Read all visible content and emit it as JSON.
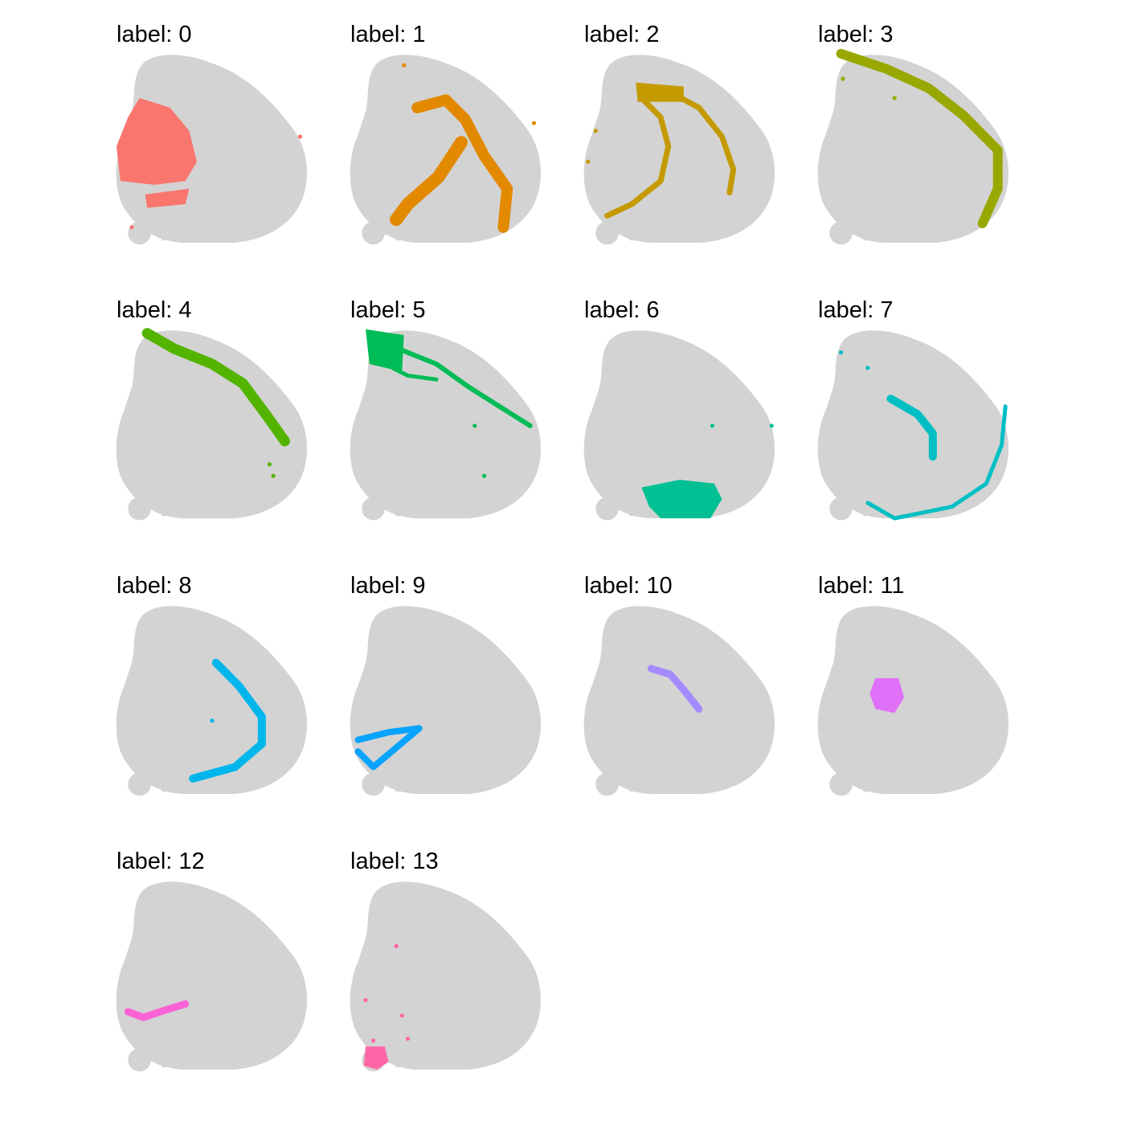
{
  "chart_data": {
    "type": "scatter",
    "title": "",
    "facet_label_prefix": "label: ",
    "background_color": "#d3d3d3",
    "axes_visible": false,
    "grid": false,
    "legend": "none",
    "panels": [
      {
        "label": "0",
        "title": "label: 0",
        "color": "#f8766d",
        "highlight_region": "left-center lobe",
        "outliers": [
          [
            0.96,
            0.45
          ],
          [
            0.08,
            0.92
          ]
        ]
      },
      {
        "label": "1",
        "title": "label: 1",
        "color": "#e38900",
        "highlight_region": "central and lower-right arcs",
        "outliers": [
          [
            0.28,
            0.08
          ],
          [
            0.96,
            0.38
          ]
        ]
      },
      {
        "label": "2",
        "title": "label: 2",
        "color": "#c49a00",
        "highlight_region": "two curved bands",
        "outliers": [
          [
            0.06,
            0.42
          ],
          [
            0.02,
            0.58
          ]
        ]
      },
      {
        "label": "3",
        "title": "label: 3",
        "color": "#99a800",
        "highlight_region": "outer upper-right rim",
        "outliers": [
          [
            0.13,
            0.15
          ],
          [
            0.4,
            0.25
          ]
        ]
      },
      {
        "label": "4",
        "title": "label: 4",
        "color": "#53b400",
        "highlight_region": "upper diagonal band",
        "outliers": [
          [
            0.8,
            0.72
          ],
          [
            0.82,
            0.78
          ]
        ]
      },
      {
        "label": "5",
        "title": "label: 5",
        "color": "#00bc56",
        "highlight_region": "upper-left cluster and band",
        "outliers": [
          [
            0.65,
            0.52
          ],
          [
            0.7,
            0.78
          ]
        ]
      },
      {
        "label": "6",
        "title": "label: 6",
        "color": "#00c094",
        "highlight_region": "bottom center",
        "outliers": [
          [
            0.67,
            0.52
          ],
          [
            0.98,
            0.52
          ]
        ]
      },
      {
        "label": "7",
        "title": "label: 7",
        "color": "#00bfc4",
        "highlight_region": "center and right rim",
        "outliers": [
          [
            0.12,
            0.14
          ],
          [
            0.26,
            0.22
          ]
        ]
      },
      {
        "label": "8",
        "title": "label: 8",
        "color": "#00b6eb",
        "highlight_region": "curved central arc",
        "outliers": [
          [
            0.5,
            0.62
          ]
        ]
      },
      {
        "label": "9",
        "title": "label: 9",
        "color": "#06a4ff",
        "highlight_region": "lower-left loop",
        "outliers": []
      },
      {
        "label": "10",
        "title": "label: 10",
        "color": "#a58aff",
        "highlight_region": "small central arc",
        "outliers": []
      },
      {
        "label": "11",
        "title": "label: 11",
        "color": "#df70f8",
        "highlight_region": "small central blob",
        "outliers": []
      },
      {
        "label": "12",
        "title": "label: 12",
        "color": "#fb61d7",
        "highlight_region": "lower-left streak",
        "outliers": []
      },
      {
        "label": "13",
        "title": "label: 13",
        "color": "#ff66a8",
        "highlight_region": "bottom-left blob",
        "outliers": [
          [
            0.24,
            0.36
          ],
          [
            0.08,
            0.64
          ],
          [
            0.27,
            0.72
          ],
          [
            0.12,
            0.85
          ],
          [
            0.3,
            0.84
          ]
        ]
      }
    ]
  }
}
